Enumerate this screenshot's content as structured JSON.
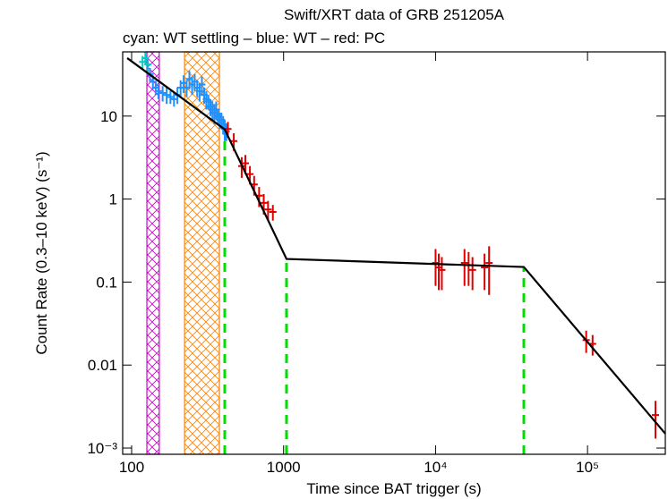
{
  "chart_data": {
    "type": "scatter",
    "title": "Swift/XRT data of GRB 251205A",
    "subtitle": "cyan: WT settling – blue: WT – red: PC",
    "x_label": "Time since BAT trigger (s)",
    "y_label": "Count Rate (0.3–10 keV) (s⁻¹)",
    "xscale": "log",
    "yscale": "log",
    "xlim": [
      87.3,
      325000
    ],
    "ylim": [
      0.000841,
      59.4
    ],
    "xticks": [
      100,
      1000,
      {
        "value": 10000,
        "label": "10⁴"
      },
      {
        "value": 100000,
        "label": "10⁵"
      }
    ],
    "yticks": [
      {
        "value": 0.001,
        "label": "10⁻³"
      },
      0.01,
      0.1,
      1,
      10
    ],
    "bands": [
      {
        "xlim": [
          126,
          152
        ],
        "color": "#cc00cc"
      },
      {
        "xlim": [
          223,
          378
        ],
        "color": "#ff8000"
      }
    ],
    "breaks": [
      410,
      1045,
      38100
    ],
    "break_color": "#00dd00",
    "series": [
      {
        "color": "#00cccc",
        "x": [
          118,
          123,
          128
        ],
        "values": [
          45,
          50,
          42
        ],
        "yerr": [
          8,
          9,
          8
        ]
      },
      {
        "color": "#1e90ff",
        "x": [
          132,
          138,
          144,
          150,
          160,
          170,
          180,
          190,
          200,
          210,
          220,
          230,
          240,
          250,
          260,
          270,
          280,
          290,
          300,
          310,
          320,
          330,
          340,
          350,
          360,
          370,
          380,
          390,
          400,
          410,
          420
        ],
        "values": [
          32,
          26,
          22,
          20,
          19,
          18,
          17,
          16,
          18,
          22,
          25,
          22,
          28,
          24,
          26,
          22,
          20,
          24,
          18,
          16,
          15,
          13,
          12,
          11,
          12,
          10,
          9,
          9,
          8,
          7,
          6.5
        ],
        "yerr": [
          6,
          5,
          4,
          4,
          4,
          4,
          3,
          3,
          4,
          5,
          6,
          5,
          7,
          6,
          6,
          5,
          5,
          6,
          4,
          4,
          3,
          3,
          3,
          3,
          3,
          2,
          2,
          2,
          2,
          2,
          1.5
        ]
      },
      {
        "color": "#e00000",
        "x": [
          430,
          470,
          530,
          560,
          600,
          640,
          690,
          740,
          790,
          850,
          10000,
          10500,
          11000,
          15500,
          16500,
          17500,
          21000,
          22500,
          98000,
          108000,
          280000
        ],
        "values": [
          7,
          5,
          2.5,
          2.7,
          2,
          1.5,
          1.1,
          0.9,
          0.75,
          0.7,
          0.17,
          0.15,
          0.14,
          0.17,
          0.16,
          0.14,
          0.15,
          0.17,
          0.02,
          0.018,
          0.0025
        ],
        "yerr": [
          1.5,
          1.2,
          0.7,
          0.7,
          0.5,
          0.4,
          0.3,
          0.25,
          0.2,
          0.15,
          0.08,
          0.07,
          0.06,
          0.08,
          0.07,
          0.06,
          0.07,
          0.1,
          0.006,
          0.005,
          0.0012
        ]
      }
    ],
    "fit": {
      "color": "#000000",
      "x": [
        93.5,
        410,
        1045,
        38100,
        325000
      ],
      "values": [
        50,
        6.9,
        0.19,
        0.152,
        0.00149
      ]
    }
  }
}
